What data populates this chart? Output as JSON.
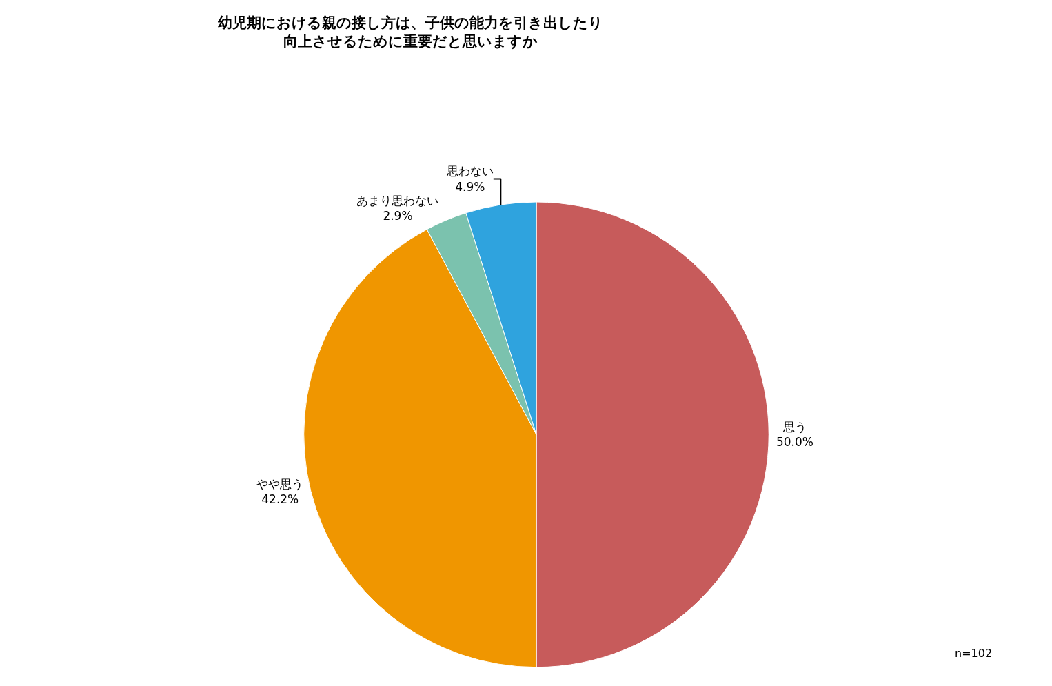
{
  "chart_data": {
    "type": "pie",
    "title": "幼児期における親の接し方は、子供の能力を引き出したり向上させるために重要だと思いますか",
    "categories": [
      "思う",
      "やや思う",
      "あまり思わない",
      "思わない"
    ],
    "values": [
      50.0,
      42.2,
      2.9,
      4.9
    ],
    "value_labels": [
      "50.0%",
      "42.2%",
      "2.9%",
      "4.9%"
    ],
    "colors": [
      "#c75b5b",
      "#f09600",
      "#7bc2ae",
      "#2fa3de"
    ],
    "legend": false,
    "annotations": [
      "n=102"
    ]
  }
}
